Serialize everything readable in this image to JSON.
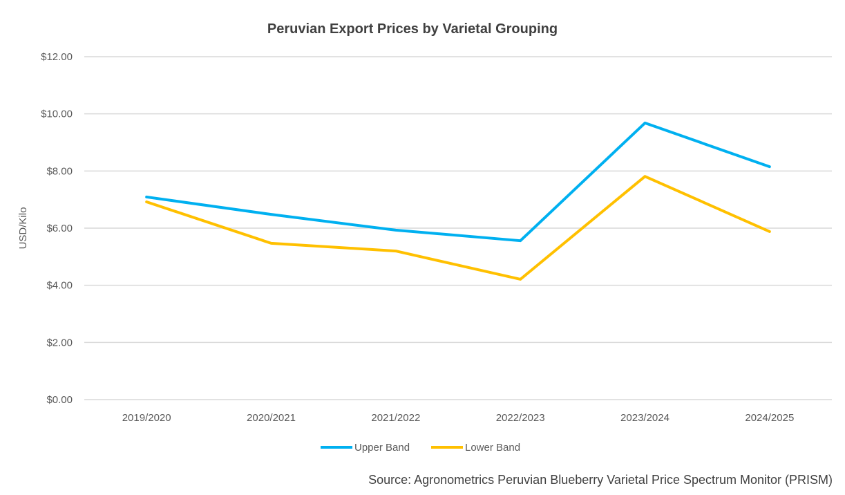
{
  "chart_data": {
    "type": "line",
    "title": "Peruvian Export Prices by Varietal Grouping",
    "xlabel": "",
    "ylabel": "USD/Kilo",
    "ylim": [
      0,
      12
    ],
    "yticks": [
      0,
      2,
      4,
      6,
      8,
      10,
      12
    ],
    "ytick_labels": [
      "$0.00",
      "$2.00",
      "$4.00",
      "$6.00",
      "$8.00",
      "$10.00",
      "$12.00"
    ],
    "categories": [
      "2019/2020",
      "2020/2021",
      "2021/2022",
      "2022/2023",
      "2023/2024",
      "2024/2025"
    ],
    "series": [
      {
        "name": "Upper Band",
        "color": "#00B0F0",
        "values": [
          7.09,
          6.48,
          5.93,
          5.56,
          9.68,
          8.15
        ]
      },
      {
        "name": "Lower Band",
        "color": "#FFC000",
        "values": [
          6.92,
          5.47,
          5.2,
          4.21,
          7.81,
          5.88
        ]
      }
    ],
    "grid": true,
    "legend": "bottom"
  },
  "source": "Source: Agronometrics Peruvian Blueberry Varietal Price Spectrum Monitor (PRISM)"
}
